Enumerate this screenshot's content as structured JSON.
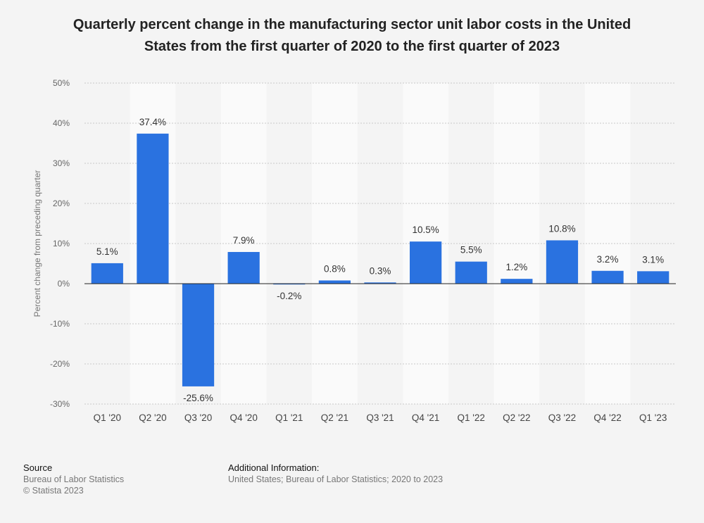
{
  "title_line1": "Quarterly percent change in the manufacturing sector unit labor costs in the United",
  "title_line2": "States from the first quarter of 2020 to the first quarter of 2023",
  "chart_data": {
    "type": "bar",
    "categories": [
      "Q1 '20",
      "Q2 '20",
      "Q3 '20",
      "Q4 '20",
      "Q1 '21",
      "Q2 '21",
      "Q3 '21",
      "Q4 '21",
      "Q1 '22",
      "Q2 '22",
      "Q3 '22",
      "Q4 '22",
      "Q1 '23"
    ],
    "values": [
      5.1,
      37.4,
      -25.6,
      7.9,
      -0.2,
      0.8,
      0.3,
      10.5,
      5.5,
      1.2,
      10.8,
      3.2,
      3.1
    ],
    "value_labels": [
      "5.1%",
      "37.4%",
      "-25.6%",
      "7.9%",
      "-0.2%",
      "0.8%",
      "0.3%",
      "10.5%",
      "5.5%",
      "1.2%",
      "10.8%",
      "3.2%",
      "3.1%"
    ],
    "ylabel": "Percent change from preceding quarter",
    "xlabel": "",
    "ylim": [
      -30,
      50
    ],
    "yticks": [
      50,
      40,
      30,
      20,
      10,
      0,
      -10,
      -20,
      -30
    ],
    "ytick_labels": [
      "50%",
      "40%",
      "30%",
      "20%",
      "10%",
      "0%",
      "-10%",
      "-20%",
      "-30%"
    ],
    "grid": true,
    "bar_color": "#2a72e0"
  },
  "footer": {
    "source_heading": "Source",
    "source_line1": "Bureau of Labor Statistics",
    "source_line2": "© Statista 2023",
    "info_heading": "Additional Information:",
    "info_text": "United States; Bureau of Labor Statistics; 2020 to 2023"
  }
}
